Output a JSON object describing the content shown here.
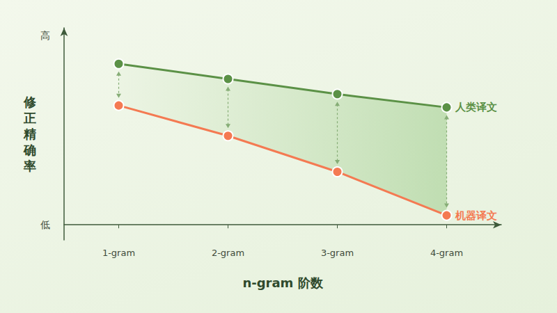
{
  "chart_data": {
    "type": "line",
    "x_label": "n-gram 阶数",
    "y_label": "修正精确率",
    "categories": [
      "1-gram",
      "2-gram",
      "3-gram",
      "4-gram"
    ],
    "series": [
      {
        "name": "人类译文",
        "color": "#5b9146",
        "marker": "circle",
        "values": [
          85,
          77,
          69,
          62
        ]
      },
      {
        "name": "机器译文",
        "color": "#f47a52",
        "marker": "circle",
        "values": [
          63,
          47,
          28,
          5
        ]
      }
    ],
    "ylim": [
      -8,
      104
    ],
    "yticks": [
      {
        "value": 0,
        "label": "低"
      },
      {
        "value": 100,
        "label": "高"
      }
    ],
    "grid": false
  }
}
